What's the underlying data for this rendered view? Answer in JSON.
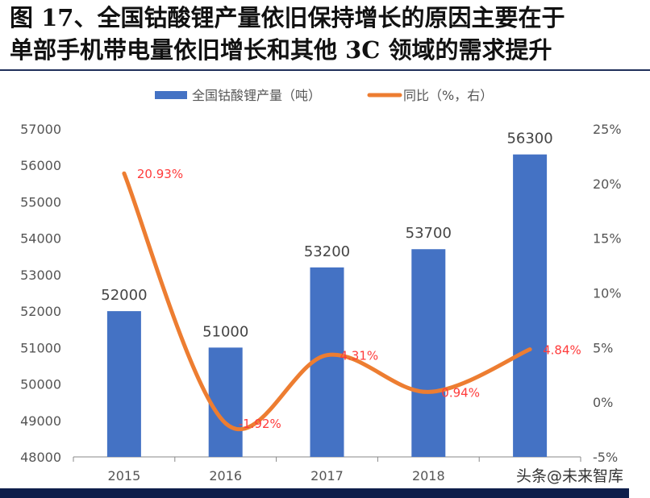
{
  "title": "图 17、全国钴酸锂产量依旧保持增长的原因主要在于\n单部手机带电量依旧增长和其他 3C 领域的需求提升",
  "watermark": "头条@未来智库",
  "chart_data": {
    "type": "bar+line",
    "categories": [
      "2015",
      "2016",
      "2017",
      "2018",
      ""
    ],
    "series": [
      {
        "name": "全国钴酸锂产量（吨）",
        "type": "bar",
        "axis": "left",
        "color": "#4472c4",
        "values": [
          52000,
          51000,
          53200,
          53700,
          56300
        ],
        "labels": [
          "52000",
          "51000",
          "53200",
          "53700",
          "56300"
        ]
      },
      {
        "name": "同比（%，右）",
        "type": "line",
        "axis": "right",
        "color": "#ed7d31",
        "values": [
          20.93,
          -1.92,
          4.31,
          0.94,
          4.84
        ],
        "labels": [
          "20.93%",
          "-1.92%",
          "4.31%",
          "0.94%",
          "4.84%"
        ]
      }
    ],
    "y_left": {
      "range": [
        48000,
        57000
      ],
      "ticks": [
        "48000",
        "49000",
        "50000",
        "51000",
        "52000",
        "53000",
        "54000",
        "55000",
        "56000",
        "57000"
      ]
    },
    "y_right": {
      "range": [
        -5,
        25
      ],
      "ticks": [
        "-5%",
        "0%",
        "5%",
        "10%",
        "15%",
        "20%",
        "25%"
      ]
    },
    "legend": "top",
    "grid": false,
    "line_label_color": "#ff3b3b"
  }
}
